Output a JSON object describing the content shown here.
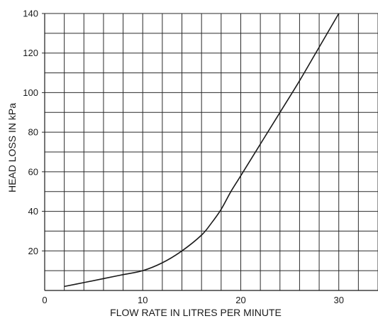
{
  "chart_data": {
    "type": "line",
    "xlabel": "FLOW RATE IN LITRES PER MINUTE",
    "ylabel": "HEAD LOSS IN kPa",
    "xlim": [
      0,
      34
    ],
    "ylim": [
      0,
      140
    ],
    "x_ticks": [
      0,
      10,
      20,
      30
    ],
    "y_ticks": [
      20,
      40,
      60,
      80,
      100,
      120,
      140
    ],
    "x_gridlines": [
      2,
      4,
      6,
      8,
      10,
      12,
      14,
      16,
      18,
      20,
      22,
      24,
      26,
      28,
      30,
      32,
      34
    ],
    "y_gridlines": [
      10,
      20,
      30,
      40,
      50,
      60,
      70,
      80,
      90,
      100,
      110,
      120,
      130,
      140
    ],
    "grid": true,
    "series": [
      {
        "x": [
          2,
          4,
          6,
          8,
          10,
          12,
          14,
          16,
          17,
          18,
          19,
          20,
          22,
          24,
          26,
          28,
          30
        ],
        "values": [
          2,
          4,
          6,
          8,
          10,
          14,
          20,
          28,
          34,
          41,
          50,
          58,
          74,
          90,
          106,
          123,
          140
        ]
      }
    ]
  }
}
